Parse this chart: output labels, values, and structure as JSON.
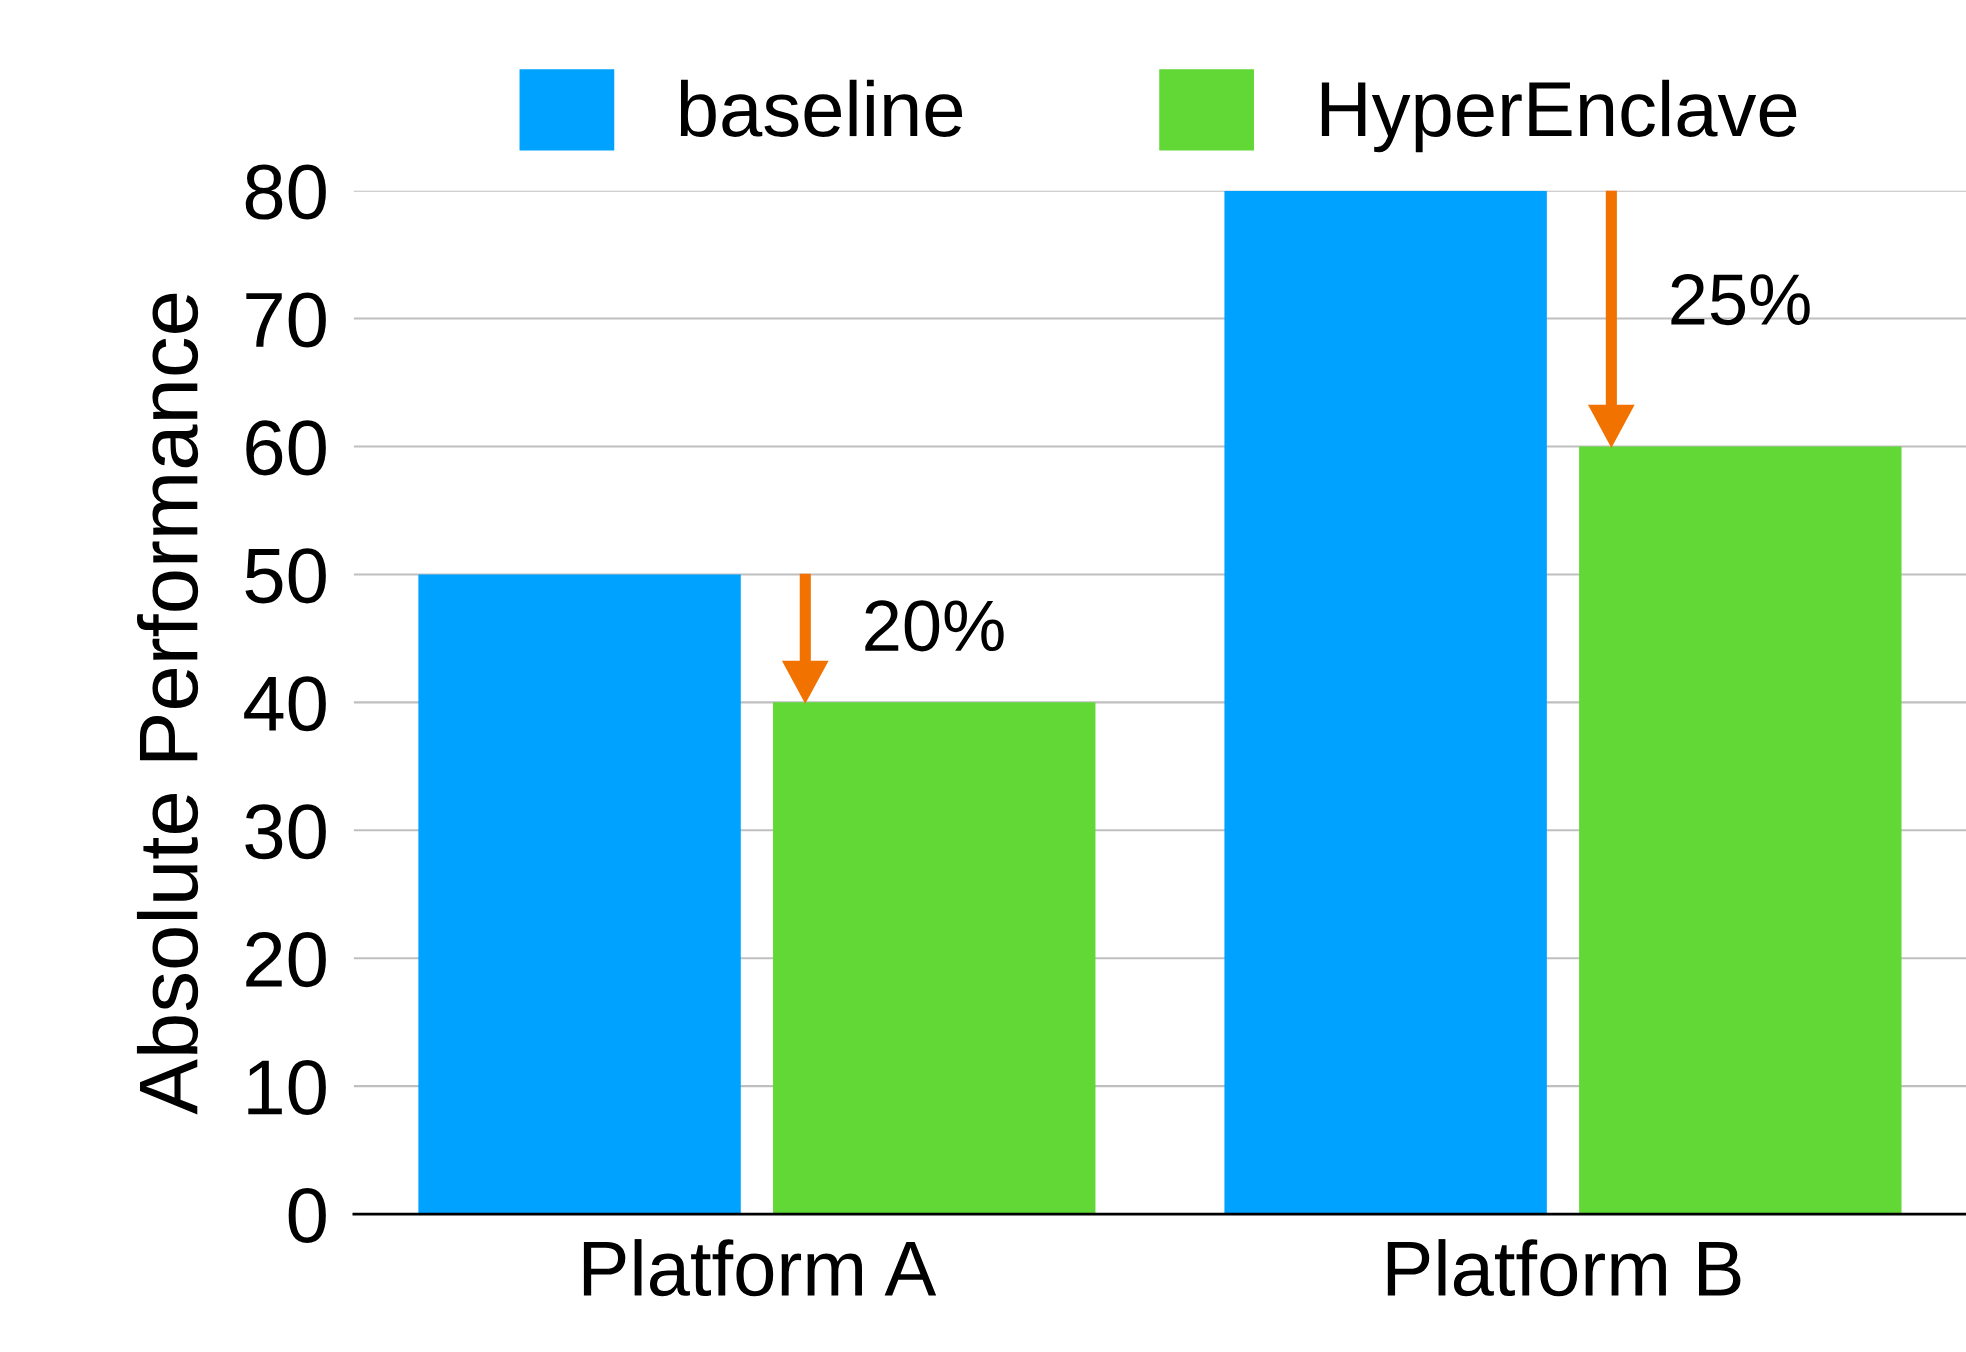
{
  "chart_data": {
    "type": "bar",
    "ylabel": "Absolute Performance",
    "categories": [
      "Platform A",
      "Platform B"
    ],
    "series": [
      {
        "name": "baseline",
        "color": "#00a2ff",
        "values": [
          50,
          80
        ]
      },
      {
        "name": "HyperEnclave",
        "color": "#61d836",
        "values": [
          40,
          60
        ]
      }
    ],
    "ylim": [
      0,
      80
    ],
    "yticks": [
      0,
      10,
      20,
      30,
      40,
      50,
      60,
      70,
      80
    ],
    "grid": "y",
    "legend": "top",
    "annotations": [
      "20%",
      "25%"
    ]
  }
}
